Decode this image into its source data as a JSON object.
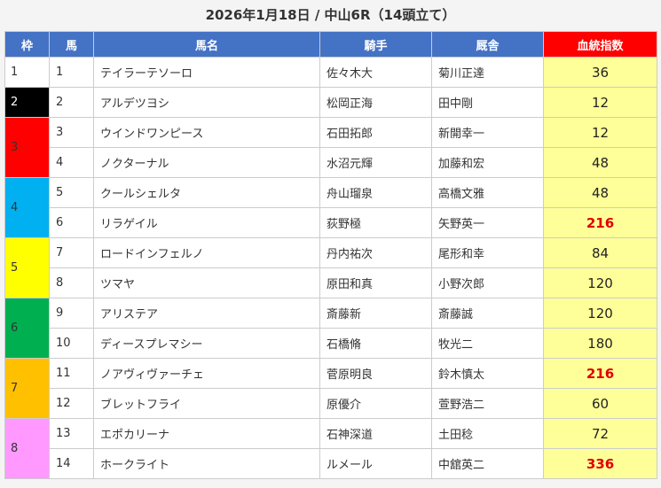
{
  "title": "2026年1月18日 / 中山6R（14頭立て）",
  "headers": {
    "frame": "枠",
    "number": "馬",
    "name": "馬名",
    "jockey": "騎手",
    "trainer": "厩舎",
    "score": "血統指数"
  },
  "colors": {
    "header": "#4472c4",
    "score_header": "#ff0000",
    "score_cell": "#ffff99",
    "highlight_text": "#e00000"
  },
  "frames": [
    {
      "frame": "1",
      "color": "#ffffff",
      "text_color": "#333333"
    },
    {
      "frame": "2",
      "color": "#000000",
      "text_color": "#ffffff"
    },
    {
      "frame": "3",
      "color": "#ff0000",
      "text_color": "#333333"
    },
    {
      "frame": "4",
      "color": "#00b0f0",
      "text_color": "#333333"
    },
    {
      "frame": "5",
      "color": "#ffff00",
      "text_color": "#333333"
    },
    {
      "frame": "6",
      "color": "#00b050",
      "text_color": "#333333"
    },
    {
      "frame": "7",
      "color": "#ffc000",
      "text_color": "#333333"
    },
    {
      "frame": "8",
      "color": "#ff99ff",
      "text_color": "#333333"
    }
  ],
  "rows": [
    {
      "frame": "1",
      "number": "1",
      "name": "テイラーテソーロ",
      "jockey": "佐々木大",
      "trainer": "菊川正達",
      "score": "36",
      "highlight": false
    },
    {
      "frame": "2",
      "number": "2",
      "name": "アルデツヨシ",
      "jockey": "松岡正海",
      "trainer": "田中剛",
      "score": "12",
      "highlight": false
    },
    {
      "frame": "3",
      "number": "3",
      "name": "ウインドワンピース",
      "jockey": "石田拓郎",
      "trainer": "新開幸一",
      "score": "12",
      "highlight": false
    },
    {
      "frame": "3",
      "number": "4",
      "name": "ノクターナル",
      "jockey": "水沼元輝",
      "trainer": "加藤和宏",
      "score": "48",
      "highlight": false
    },
    {
      "frame": "4",
      "number": "5",
      "name": "クールシェルタ",
      "jockey": "舟山瑠泉",
      "trainer": "高橋文雅",
      "score": "48",
      "highlight": false
    },
    {
      "frame": "4",
      "number": "6",
      "name": "リラゲイル",
      "jockey": "荻野極",
      "trainer": "矢野英一",
      "score": "216",
      "highlight": true
    },
    {
      "frame": "5",
      "number": "7",
      "name": "ロードインフェルノ",
      "jockey": "丹内祐次",
      "trainer": "尾形和幸",
      "score": "84",
      "highlight": false
    },
    {
      "frame": "5",
      "number": "8",
      "name": "ツマヤ",
      "jockey": "原田和真",
      "trainer": "小野次郎",
      "score": "120",
      "highlight": false
    },
    {
      "frame": "6",
      "number": "9",
      "name": "アリステア",
      "jockey": "斎藤新",
      "trainer": "斎藤誠",
      "score": "120",
      "highlight": false
    },
    {
      "frame": "6",
      "number": "10",
      "name": "ディースプレマシー",
      "jockey": "石橋脩",
      "trainer": "牧光二",
      "score": "180",
      "highlight": false
    },
    {
      "frame": "7",
      "number": "11",
      "name": "ノアヴィヴァーチェ",
      "jockey": "菅原明良",
      "trainer": "鈴木慎太",
      "score": "216",
      "highlight": true
    },
    {
      "frame": "7",
      "number": "12",
      "name": "ブレットフライ",
      "jockey": "原優介",
      "trainer": "萱野浩二",
      "score": "60",
      "highlight": false
    },
    {
      "frame": "8",
      "number": "13",
      "name": "エポカリーナ",
      "jockey": "石神深道",
      "trainer": "土田稔",
      "score": "72",
      "highlight": false
    },
    {
      "frame": "8",
      "number": "14",
      "name": "ホークライト",
      "jockey": "ルメール",
      "trainer": "中舘英二",
      "score": "336",
      "highlight": true
    }
  ]
}
